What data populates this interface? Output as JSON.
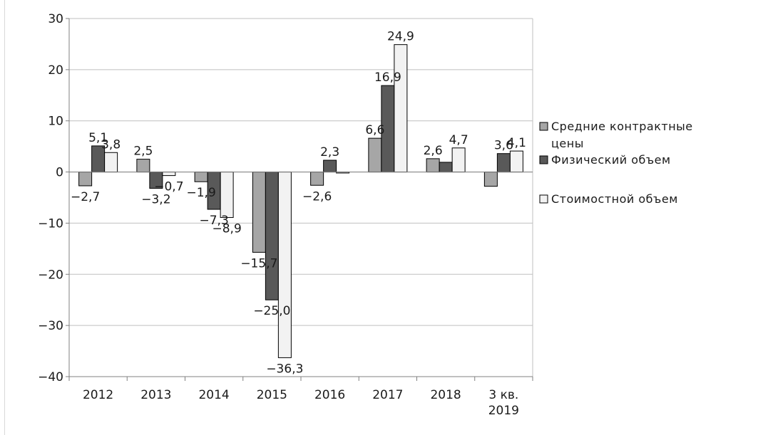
{
  "chart_data": {
    "type": "bar",
    "categories": [
      [
        "2012"
      ],
      [
        "2013"
      ],
      [
        "2014"
      ],
      [
        "2015"
      ],
      [
        "2016"
      ],
      [
        "2017"
      ],
      [
        "2018"
      ],
      [
        "3 кв.",
        "2019"
      ]
    ],
    "series": [
      {
        "name": "Средние контрактные цены",
        "color": "#a6a6a6",
        "values": [
          -2.7,
          2.5,
          -1.9,
          -15.7,
          -2.6,
          6.6,
          2.6,
          -2.8
        ],
        "labels": [
          "−2,7",
          "2,5",
          "−1,9",
          "−15,7",
          "−2,6",
          "6,6",
          "2,6",
          ""
        ]
      },
      {
        "name": "Физический объем",
        "color": "#595959",
        "values": [
          5.1,
          -3.2,
          -7.3,
          -25.0,
          2.3,
          16.9,
          1.9,
          3.6
        ],
        "labels": [
          "5,1",
          "−3,2",
          "−7,3",
          "−25,0",
          "2,3",
          "16,9",
          "",
          "3,6"
        ]
      },
      {
        "name": "Стоимостной объем",
        "color": "#f2f2f2",
        "values": [
          3.8,
          -0.7,
          -8.9,
          -36.3,
          -0.2,
          24.9,
          4.7,
          4.1
        ],
        "labels": [
          "3,8",
          "−0,7",
          "−8,9",
          "−36,3",
          "",
          "24,9",
          "4,7",
          "4,1"
        ]
      }
    ],
    "yticks": [
      30,
      20,
      10,
      0,
      -10,
      -20,
      -30,
      -40
    ],
    "ytick_labels": [
      "30",
      "20",
      "10",
      "0",
      "−10",
      "−20",
      "−30",
      "−40"
    ],
    "ylim": [
      -40,
      30
    ],
    "grid": true,
    "legend_position": "right",
    "legend": [
      {
        "lines": [
          "Средние контрактные",
          "цены"
        ],
        "color": "#a6a6a6"
      },
      {
        "lines": [
          "Физический объем"
        ],
        "color": "#595959"
      },
      {
        "lines": [
          "Стоимостной объем"
        ],
        "color": "#f2f2f2"
      }
    ]
  }
}
